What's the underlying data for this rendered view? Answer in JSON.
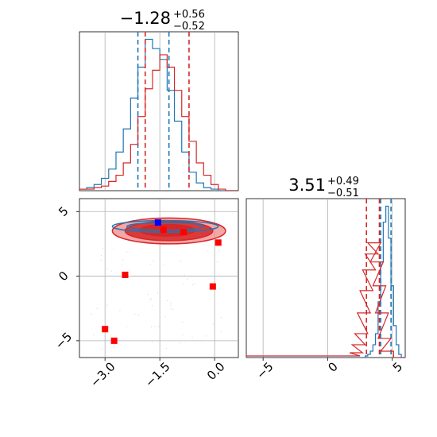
{
  "colors": {
    "blue": "#1f77b4",
    "red": "#d62728",
    "red_fill_dark": "#d62728",
    "red_fill_light": "#f08a8a",
    "marker_red": "#ff0000",
    "marker_blue": "#0000ff",
    "grid": "#b0b0b0"
  },
  "chart_data": [
    {
      "type": "histogram",
      "panel": "param1-marginal",
      "title_main": "−1.28",
      "title_plus": "+0.56",
      "title_minus": "−0.52",
      "xlim": [
        -3.7,
        0.65
      ],
      "grid": true,
      "series": [
        {
          "name": "",
          "color": "blue",
          "x": [
            -3.6,
            -3.4,
            -3.2,
            -3.0,
            -2.8,
            -2.6,
            -2.4,
            -2.2,
            -2.0,
            -1.8,
            -1.6,
            -1.4,
            -1.2,
            -1.0,
            -0.8,
            -0.6,
            -0.4,
            -0.2,
            0.0,
            0.2
          ],
          "y": [
            1,
            2,
            4,
            8,
            14,
            25,
            40,
            60,
            80,
            98,
            92,
            85,
            65,
            45,
            25,
            12,
            5,
            2,
            1,
            0
          ],
          "quantiles": [
            -2.1,
            -1.25
          ]
        },
        {
          "name": "",
          "color": "red",
          "x": [
            -3.6,
            -3.4,
            -3.2,
            -3.0,
            -2.8,
            -2.6,
            -2.4,
            -2.2,
            -2.0,
            -1.8,
            -1.6,
            -1.4,
            -1.2,
            -1.0,
            -0.8,
            -0.6,
            -0.4,
            -0.2,
            0.0,
            0.2
          ],
          "y": [
            1,
            1,
            2,
            3,
            6,
            10,
            18,
            30,
            48,
            66,
            78,
            88,
            80,
            65,
            48,
            32,
            18,
            10,
            4,
            1
          ],
          "quantiles": [
            -1.9,
            -0.7
          ]
        }
      ]
    },
    {
      "type": "histogram",
      "panel": "param2-marginal",
      "title_main": "3.51",
      "title_plus": "+0.49",
      "title_minus": "−0.51",
      "xlim": [
        -6.3,
        6.0
      ],
      "xticks": [
        -5,
        0,
        5
      ],
      "grid": true,
      "series": [
        {
          "name": "",
          "color": "blue",
          "x": [
            3.0,
            3.2,
            3.4,
            3.6,
            3.8,
            4.0,
            4.2,
            4.4,
            4.6,
            4.8,
            5.0,
            5.2,
            5.4,
            5.6
          ],
          "y": [
            1,
            2,
            4,
            8,
            15,
            35,
            60,
            85,
            95,
            75,
            45,
            20,
            8,
            2
          ],
          "quantiles": [
            4.1,
            4.9
          ]
        },
        {
          "name": "",
          "color": "red",
          "x": [
            -6.0,
            -5.0,
            2.0,
            2.2,
            2.4,
            2.6,
            2.8,
            3.0,
            3.2,
            3.4,
            3.6,
            3.8,
            4.0,
            4.2,
            4.4,
            4.6
          ],
          "y": [
            1,
            1,
            1,
            3,
            8,
            15,
            28,
            42,
            55,
            65,
            72,
            60,
            45,
            28,
            12,
            4
          ],
          "quantiles": [
            3.0,
            4.0
          ]
        }
      ]
    },
    {
      "type": "scatter",
      "panel": "joint",
      "xlim": [
        -3.7,
        0.65
      ],
      "ylim": [
        -6.3,
        6.0
      ],
      "xticks": [
        -3.0,
        -1.5,
        0.0
      ],
      "xtick_labels": [
        "−3.0",
        "−1.5",
        "0.0"
      ],
      "yticks": [
        -5,
        0,
        5
      ],
      "ytick_labels": [
        "−5",
        "0",
        "5"
      ],
      "grid": true,
      "red_markers": [
        {
          "x": -1.4,
          "y": 3.6
        },
        {
          "x": -0.85,
          "y": 3.4
        },
        {
          "x": 0.1,
          "y": 2.6
        },
        {
          "x": -2.45,
          "y": 0.1
        },
        {
          "x": -0.05,
          "y": -0.8
        },
        {
          "x": -3.0,
          "y": -4.1
        },
        {
          "x": -2.75,
          "y": -5.0
        }
      ],
      "blue_markers": [
        {
          "x": -1.55,
          "y": 4.15
        }
      ],
      "contours": [
        {
          "color": "red",
          "cx": -1.25,
          "cy": 3.5,
          "rx": 1.55,
          "ry": 1.0,
          "fill": "red_fill_light",
          "opacity": 0.75
        },
        {
          "color": "red",
          "cx": -1.25,
          "cy": 3.5,
          "rx": 1.2,
          "ry": 0.75,
          "fill": "red_fill_dark",
          "opacity": 0.85
        },
        {
          "color": "red",
          "cx": -1.3,
          "cy": 3.55,
          "rx": 0.75,
          "ry": 0.45,
          "fill": "red_fill_dark",
          "opacity": 1.0
        },
        {
          "color": "blue",
          "cx": -1.35,
          "cy": 3.85,
          "rx": 1.45,
          "ry": 0.45,
          "fill": "none",
          "opacity": 1.0
        },
        {
          "color": "blue",
          "cx": -1.35,
          "cy": 3.85,
          "rx": 1.05,
          "ry": 0.3,
          "fill": "none",
          "opacity": 1.0
        }
      ]
    }
  ]
}
